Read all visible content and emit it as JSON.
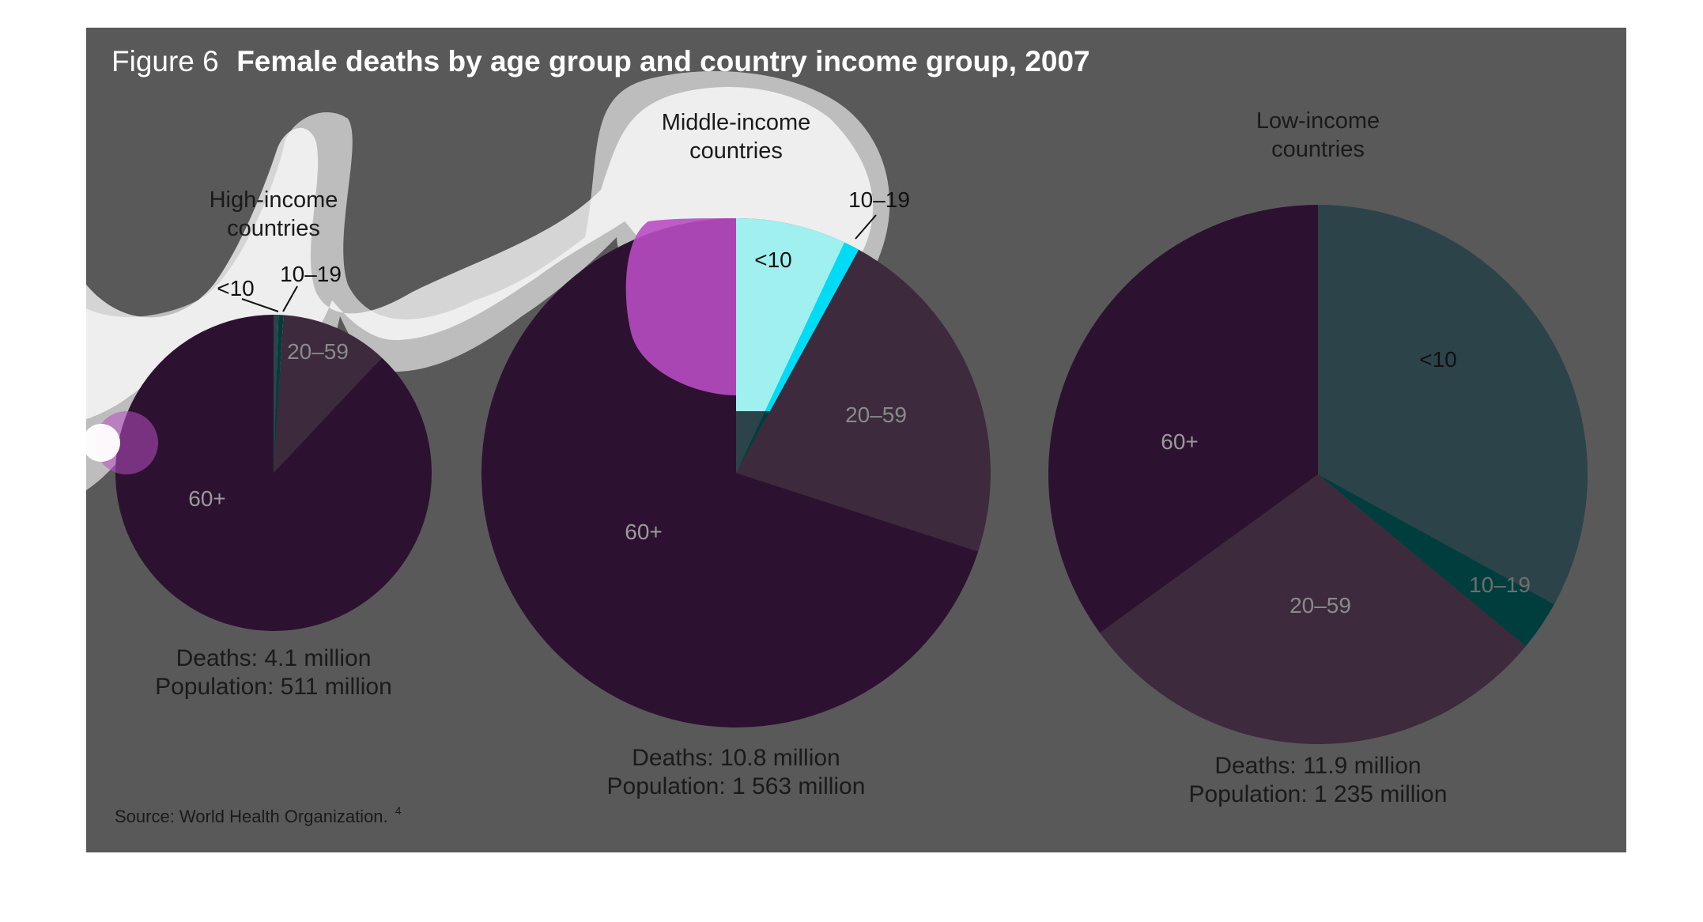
{
  "figure": {
    "title_prefix": "Figure 6",
    "title": "Female deaths by age group and country income group, 2007",
    "source": "Source: World Health Organization.",
    "source_note": "4",
    "colors": {
      "panel": "#595959",
      "age_lt10": "#2c4349",
      "age_10_19": "#003d3d",
      "age_20_59": "#3d2a3d",
      "age_60plus": "#2c1230",
      "highlight_lt10": "#aaffff",
      "highlight_10_19": "#00e5ff",
      "highlight_60plus": "#b84cc2"
    }
  },
  "chart_data": [
    {
      "type": "pie",
      "title": "High-income countries",
      "categories": [
        "<10",
        "10–19",
        "20–59",
        "60+"
      ],
      "values": [
        0.5,
        0.5,
        11,
        88
      ],
      "unit": "% of female deaths",
      "caption_deaths": "Deaths: 4.1 million",
      "caption_population": "Population: 511 million",
      "label_placement": {
        "<10": "leader",
        "10–19": "leader",
        "20–59": "inside",
        "60+": "inside"
      }
    },
    {
      "type": "pie",
      "title": "Middle-income countries",
      "categories": [
        "<10",
        "10–19",
        "20–59",
        "60+"
      ],
      "values": [
        7,
        1,
        22,
        70
      ],
      "unit": "% of female deaths",
      "caption_deaths": "Deaths: 10.8 million",
      "caption_population": "Population: 1 563 million",
      "label_placement": {
        "<10": "inside",
        "10–19": "leader",
        "20–59": "inside",
        "60+": "inside"
      }
    },
    {
      "type": "pie",
      "title": "Low-income countries",
      "categories": [
        "<10",
        "10–19",
        "20–59",
        "60+"
      ],
      "values": [
        33,
        3,
        29,
        35
      ],
      "unit": "% of female deaths",
      "caption_deaths": "Deaths: 11.9 million",
      "caption_population": "Population: 1 235 million",
      "label_placement": {
        "<10": "inside",
        "10–19": "inside",
        "20–59": "inside",
        "60+": "inside"
      }
    }
  ]
}
